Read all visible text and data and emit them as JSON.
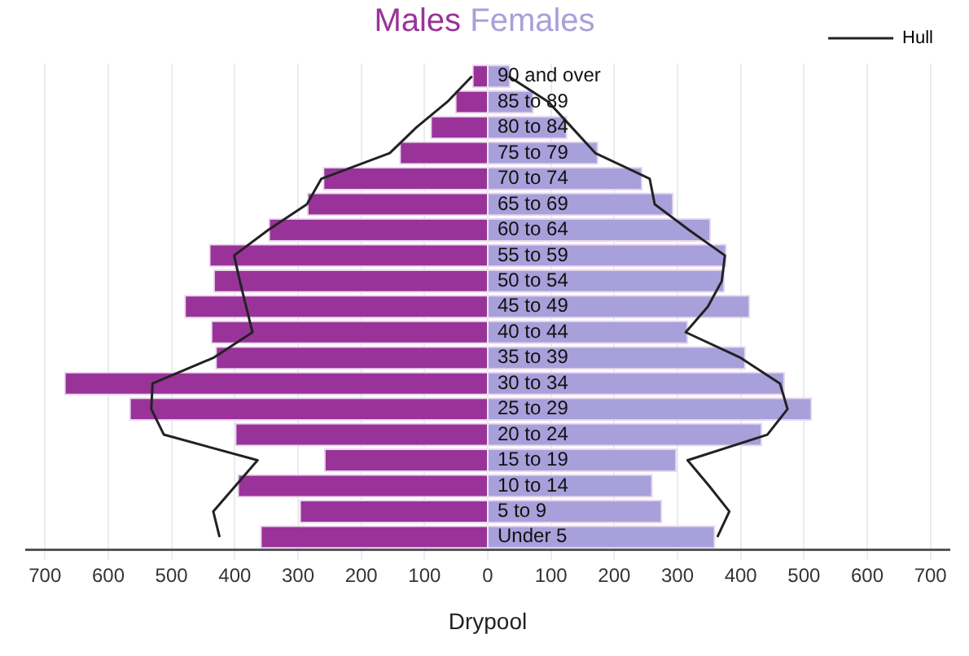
{
  "chart_data": {
    "type": "bar",
    "orientation": "horizontal",
    "stacked": true,
    "xlabel": "Drypool",
    "categories": [
      "90 and over",
      "85 to 89",
      "80 to 84",
      "75 to 79",
      "70 to 74",
      "65 to 69",
      "60 to 64",
      "55 to 59",
      "50 to 54",
      "45 to 49",
      "40 to 44",
      "35 to 39",
      "30 to 34",
      "25 to 29",
      "20 to 24",
      "15 to 19",
      "10 to 14",
      "5 to 9",
      "Under 5"
    ],
    "series": [
      {
        "name": "Males",
        "color": "#993399",
        "values": [
          -25,
          -52,
          -91,
          -140,
          -261,
          -286,
          -347,
          -441,
          -434,
          -480,
          -438,
          -431,
          -670,
          -567,
          -400,
          -259,
          -396,
          -298,
          -360
        ]
      },
      {
        "name": "Females",
        "color": "#a8a0da",
        "values": [
          36,
          73,
          126,
          175,
          245,
          294,
          353,
          378,
          375,
          415,
          317,
          408,
          470,
          513,
          434,
          299,
          261,
          276,
          360
        ]
      },
      {
        "name": "Hull",
        "type": "line",
        "color": "#222222",
        "values": [
          -25,
          -64,
          -113,
          -155,
          -263,
          -286,
          -347,
          -401,
          -392,
          -382,
          -372,
          -434,
          -530,
          -532,
          -512,
          -364,
          -399,
          -434,
          -424
        ]
      },
      {
        "type": "line",
        "color": "#222222",
        "values": [
          33,
          96,
          133,
          170,
          256,
          264,
          318,
          375,
          370,
          348,
          313,
          400,
          462,
          474,
          442,
          316,
          350,
          382,
          363
        ]
      }
    ],
    "xlim": [
      -730,
      730
    ],
    "xticks": [
      {
        "value": -700,
        "label": "700"
      },
      {
        "value": -600,
        "label": "600"
      },
      {
        "value": -500,
        "label": "500"
      },
      {
        "value": -400,
        "label": "400"
      },
      {
        "value": -300,
        "label": "300"
      },
      {
        "value": -200,
        "label": "200"
      },
      {
        "value": -100,
        "label": "100"
      },
      0,
      100,
      200,
      300,
      400,
      500,
      600,
      700
    ],
    "grid": "x",
    "legend": "top right",
    "marker": "none"
  }
}
